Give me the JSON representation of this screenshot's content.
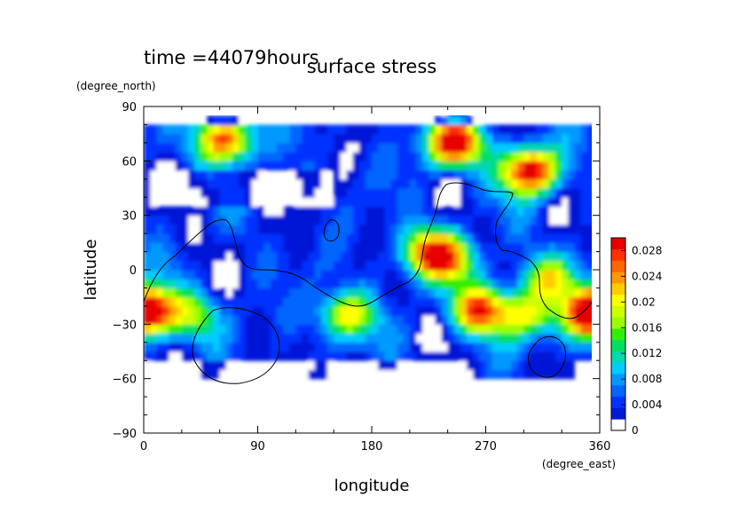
{
  "chart_data": {
    "type": "heatmap",
    "title": "surface stress",
    "time_label": "time =44079hours",
    "xlabel": "longitude",
    "ylabel": "latitude",
    "x_unit": "(degree_east)",
    "y_unit": "(degree_north)",
    "xlim": [
      0,
      360
    ],
    "ylim": [
      -90,
      90
    ],
    "x_ticks": [
      "0",
      "90",
      "180",
      "270",
      "360"
    ],
    "y_ticks": [
      "90",
      "60",
      "30",
      "0",
      "−30",
      "−60",
      "−90"
    ],
    "colorbar": {
      "min": 0,
      "max": 0.03,
      "tick_labels": [
        "0",
        "0.004",
        "0.008",
        "0.012",
        "0.016",
        "0.02",
        "0.024",
        "0.028"
      ],
      "colors": [
        "#ffffff",
        "#0019d6",
        "#0033ff",
        "#0066ff",
        "#0099ff",
        "#00ccff",
        "#00d8b0",
        "#00e060",
        "#33ee00",
        "#99ff00",
        "#ccff00",
        "#ffff00",
        "#ffcc00",
        "#ff9900",
        "#ff6600",
        "#ff3300",
        "#e60000"
      ]
    },
    "stress_peaks": [
      {
        "lon": 65,
        "lat": 72,
        "value": 0.026
      },
      {
        "lon": 245,
        "lat": 70,
        "value": 0.03
      },
      {
        "lon": 305,
        "lat": 55,
        "value": 0.03
      },
      {
        "lon": 5,
        "lat": -22,
        "value": 0.023
      },
      {
        "lon": 265,
        "lat": -22,
        "value": 0.024
      },
      {
        "lon": 350,
        "lat": -25,
        "value": 0.022
      },
      {
        "lon": 225,
        "lat": 10,
        "value": 0.022
      },
      {
        "lon": 160,
        "lat": -25,
        "value": 0.018
      },
      {
        "lon": 40,
        "lat": -25,
        "value": 0.012
      },
      {
        "lon": 320,
        "lat": -5,
        "value": 0.016
      },
      {
        "lon": 300,
        "lat": -25,
        "value": 0.016
      },
      {
        "lon": 245,
        "lat": 5,
        "value": 0.013
      }
    ]
  }
}
